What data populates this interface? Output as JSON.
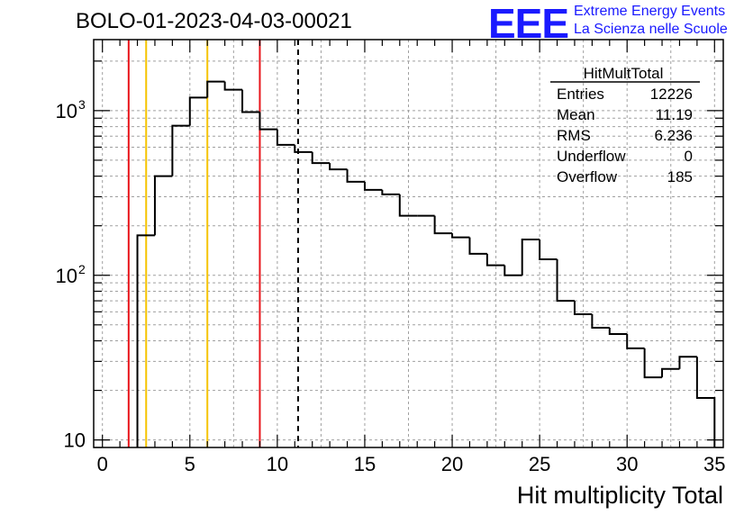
{
  "run_title": "BOLO-01-2023-04-03-00021",
  "logo": {
    "mark": "EEE",
    "line1": "Extreme Energy Events",
    "line2": "La Scienza nelle Scuole"
  },
  "stats": {
    "name": "HitMultTotal",
    "rows": [
      {
        "label": "Entries",
        "value": "12226"
      },
      {
        "label": "Mean",
        "value": "11.19"
      },
      {
        "label": "RMS",
        "value": "6.236"
      },
      {
        "label": "Underflow",
        "value": "0"
      },
      {
        "label": "Overflow",
        "value": "185"
      }
    ]
  },
  "colors": {
    "histogram": "#000000",
    "red_line": "#e8141b",
    "yellow_line": "#f5c400",
    "grid": "#a0a0a0",
    "logo": "#1a1aff"
  },
  "chart_data": {
    "type": "histogram",
    "title": "",
    "xlabel": "Hit multiplicity Total",
    "ylabel": "",
    "xlim": [
      -0.5,
      35.5
    ],
    "ylim": [
      9,
      2700
    ],
    "yscale": "log",
    "grid": true,
    "bin_width": 1,
    "bins": [
      {
        "x": 2.5,
        "y": 175
      },
      {
        "x": 3.5,
        "y": 400
      },
      {
        "x": 4.5,
        "y": 810
      },
      {
        "x": 5.5,
        "y": 1200
      },
      {
        "x": 6.5,
        "y": 1500
      },
      {
        "x": 7.5,
        "y": 1340
      },
      {
        "x": 8.5,
        "y": 980
      },
      {
        "x": 9.5,
        "y": 770
      },
      {
        "x": 10.5,
        "y": 620
      },
      {
        "x": 11.5,
        "y": 560
      },
      {
        "x": 12.5,
        "y": 480
      },
      {
        "x": 13.5,
        "y": 440
      },
      {
        "x": 14.5,
        "y": 370
      },
      {
        "x": 15.5,
        "y": 330
      },
      {
        "x": 16.5,
        "y": 310
      },
      {
        "x": 17.5,
        "y": 230
      },
      {
        "x": 18.5,
        "y": 230
      },
      {
        "x": 19.5,
        "y": 180
      },
      {
        "x": 20.5,
        "y": 170
      },
      {
        "x": 21.5,
        "y": 135
      },
      {
        "x": 22.5,
        "y": 115
      },
      {
        "x": 23.5,
        "y": 100
      },
      {
        "x": 24.5,
        "y": 165
      },
      {
        "x": 25.5,
        "y": 125
      },
      {
        "x": 26.5,
        "y": 70
      },
      {
        "x": 27.5,
        "y": 58
      },
      {
        "x": 28.5,
        "y": 48
      },
      {
        "x": 29.5,
        "y": 44
      },
      {
        "x": 30.5,
        "y": 36
      },
      {
        "x": 31.5,
        "y": 24
      },
      {
        "x": 32.5,
        "y": 27
      },
      {
        "x": 33.5,
        "y": 32
      },
      {
        "x": 34.5,
        "y": 18
      }
    ],
    "vlines": [
      {
        "x": 1.5,
        "color": "red"
      },
      {
        "x": 2.5,
        "color": "yellow"
      },
      {
        "x": 6.0,
        "color": "yellow"
      },
      {
        "x": 9.0,
        "color": "red"
      },
      {
        "x": 11.19,
        "color": "black",
        "style": "dashed"
      }
    ],
    "x_ticks": [
      0,
      5,
      10,
      15,
      20,
      25,
      30,
      35
    ],
    "y_ticks": [
      {
        "value": 10,
        "label": "10",
        "exp": ""
      },
      {
        "value": 100,
        "label": "10",
        "exp": "2"
      },
      {
        "value": 1000,
        "label": "10",
        "exp": "3"
      }
    ]
  }
}
